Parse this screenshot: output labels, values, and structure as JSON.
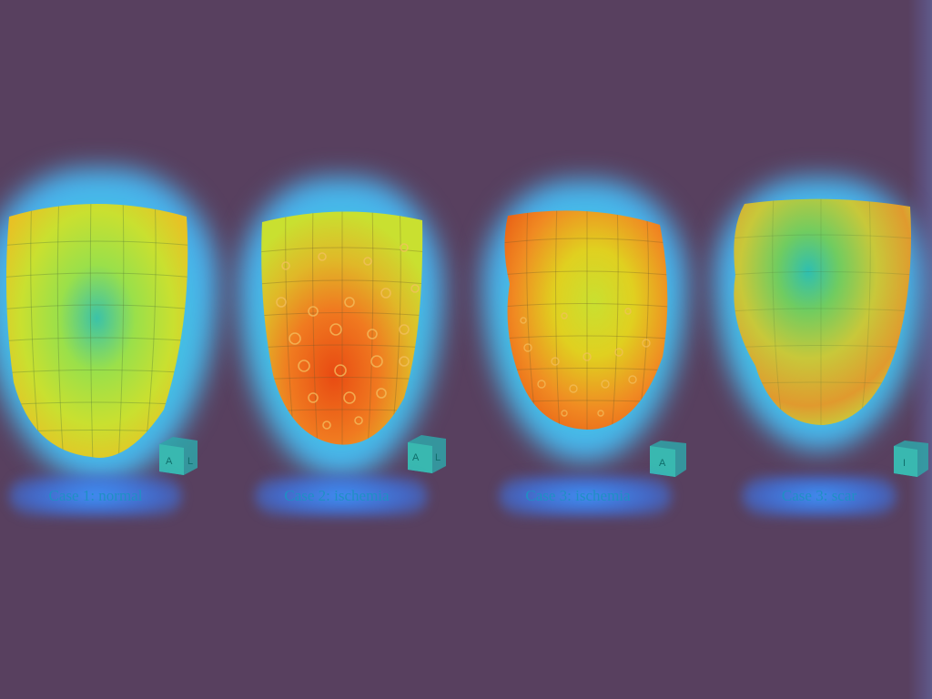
{
  "captions": [
    "Case 1: normal",
    "Case 2: ischemia",
    "Case 3: ischemia",
    "Case 3: scar"
  ],
  "cube_labels": [
    [
      "A",
      "L"
    ],
    [
      "A",
      "L"
    ],
    [
      "A"
    ],
    [
      "I"
    ]
  ],
  "colors": {
    "background": "#58405f",
    "glow_outer": "#3c6cf0",
    "glow_inner": "#36e0c8",
    "map_green": "#b5e635",
    "map_yellow": "#e0d020",
    "map_orange": "#f07a20",
    "map_red": "#e84a12",
    "map_cyan": "#3bc2a8",
    "caption_text": "#1f8fc4"
  }
}
